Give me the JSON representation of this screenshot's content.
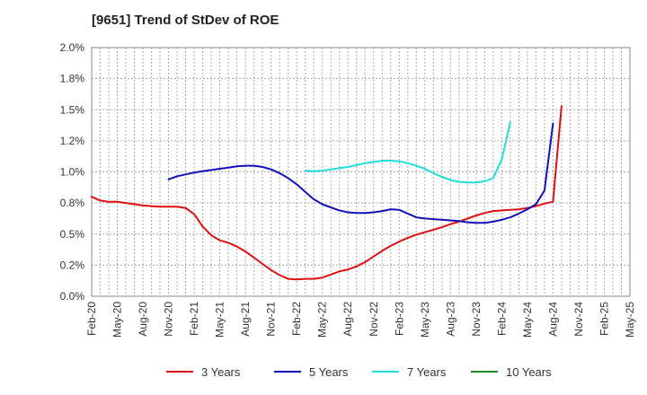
{
  "chart_data": {
    "type": "line",
    "title": "[9651]  Trend of StDev of ROE",
    "xlabel": "",
    "ylabel": "",
    "x_ticks": [
      "Feb-20",
      "May-20",
      "Aug-20",
      "Nov-20",
      "Feb-21",
      "May-21",
      "Aug-21",
      "Nov-21",
      "Feb-22",
      "May-22",
      "Aug-22",
      "Nov-22",
      "Feb-23",
      "May-23",
      "Aug-23",
      "Nov-23",
      "Feb-24",
      "May-24",
      "Aug-24",
      "Nov-24",
      "Feb-25",
      "May-25"
    ],
    "y_ticks": [
      "0.0%",
      "0.2%",
      "0.5%",
      "0.8%",
      "1.0%",
      "1.2%",
      "1.5%",
      "1.8%",
      "2.0%"
    ],
    "ylim": [
      0,
      2.0
    ],
    "grid": true,
    "legend_position": "bottom",
    "series": [
      {
        "name": "3 Years",
        "color": "#dd1111",
        "start_index": 0,
        "values": [
          0.8,
          0.77,
          0.76,
          0.76,
          0.75,
          0.74,
          0.73,
          0.725,
          0.72,
          0.72,
          0.72,
          0.71,
          0.66,
          0.56,
          0.49,
          0.45,
          0.43,
          0.4,
          0.36,
          0.31,
          0.26,
          0.21,
          0.17,
          0.14,
          0.135,
          0.14,
          0.14,
          0.15,
          0.175,
          0.2,
          0.215,
          0.24,
          0.275,
          0.32,
          0.365,
          0.405,
          0.44,
          0.47,
          0.495,
          0.515,
          0.535,
          0.555,
          0.58,
          0.6,
          0.625,
          0.65,
          0.67,
          0.685,
          0.69,
          0.695,
          0.7,
          0.71,
          0.725,
          0.745,
          0.76,
          1.53
        ]
      },
      {
        "name": "5 Years",
        "color": "#1111bb",
        "start_index": 9,
        "values": [
          0.94,
          0.965,
          0.98,
          0.995,
          1.005,
          1.015,
          1.025,
          1.035,
          1.045,
          1.05,
          1.05,
          1.04,
          1.02,
          0.99,
          0.95,
          0.9,
          0.84,
          0.78,
          0.74,
          0.715,
          0.69,
          0.675,
          0.67,
          0.67,
          0.675,
          0.685,
          0.7,
          0.695,
          0.665,
          0.635,
          0.625,
          0.62,
          0.615,
          0.61,
          0.605,
          0.595,
          0.59,
          0.59,
          0.6,
          0.615,
          0.635,
          0.665,
          0.7,
          0.74,
          0.85,
          1.39
        ]
      },
      {
        "name": "7 Years",
        "color": "#22dddd",
        "start_index": 25,
        "values": [
          1.01,
          1.005,
          1.01,
          1.02,
          1.03,
          1.04,
          1.055,
          1.07,
          1.08,
          1.09,
          1.09,
          1.085,
          1.07,
          1.05,
          1.025,
          0.99,
          0.96,
          0.935,
          0.92,
          0.915,
          0.915,
          0.925,
          0.95,
          1.1,
          1.4
        ]
      },
      {
        "name": "10 Years",
        "color": "#228822",
        "start_index": 0,
        "values": []
      }
    ]
  }
}
